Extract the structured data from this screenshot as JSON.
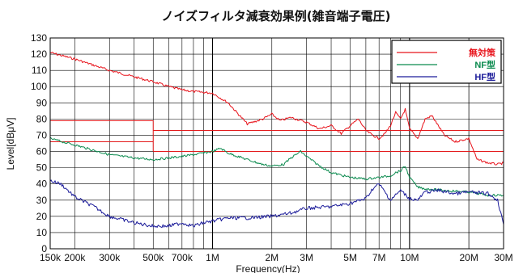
{
  "chart_data": {
    "type": "line",
    "title": "ノイズフィルタ減衰効果例(雑音端子電圧)",
    "xlabel": "Frequency(Hz)",
    "ylabel": "Level[dBμV]",
    "x_scale": "log",
    "xlim": [
      150000,
      30000000
    ],
    "ylim": [
      0,
      130
    ],
    "x_tick_values": [
      150000,
      200000,
      300000,
      500000,
      700000,
      1000000,
      2000000,
      3000000,
      5000000,
      7000000,
      10000000,
      20000000,
      30000000
    ],
    "x_tick_labels": [
      "150k",
      "200k",
      "300k",
      "500k",
      "700k",
      "1M",
      "2M",
      "3M",
      "5M",
      "7M",
      "10M",
      "20M",
      "30M"
    ],
    "y_ticks": [
      0,
      10,
      20,
      30,
      40,
      50,
      60,
      70,
      80,
      90,
      100,
      110,
      120,
      130
    ],
    "grid": true,
    "legend_position": "top-right",
    "limit_lines": [
      {
        "x": [
          150000,
          500000
        ],
        "y": 79,
        "color": "#e41a1c"
      },
      {
        "x": [
          150000,
          500000
        ],
        "y": 66,
        "color": "#e41a1c"
      },
      {
        "x": [
          500000,
          30000000
        ],
        "y": 73,
        "color": "#e41a1c"
      },
      {
        "x": [
          500000,
          30000000
        ],
        "y": 60,
        "color": "#e41a1c"
      }
    ],
    "series": [
      {
        "name": "無対策",
        "color": "#e8141c",
        "x": [
          150000,
          200000,
          300000,
          400000,
          500000,
          600000,
          700000,
          800000,
          1000000,
          1200000,
          1500000,
          1800000,
          2000000,
          2200000,
          2500000,
          3000000,
          3500000,
          4000000,
          4500000,
          5000000,
          5500000,
          6000000,
          6500000,
          7000000,
          7500000,
          8000000,
          8500000,
          9000000,
          9500000,
          10000000,
          11000000,
          12000000,
          13000000,
          15000000,
          17000000,
          20000000,
          22000000,
          25000000,
          28000000,
          30000000
        ],
        "y": [
          121,
          117,
          110,
          106,
          103,
          100,
          98,
          97,
          96,
          90,
          77,
          80,
          83,
          79,
          81,
          78,
          74,
          76,
          71,
          76,
          80,
          73,
          70,
          68,
          71,
          76,
          84,
          80,
          86,
          74,
          68,
          80,
          82,
          70,
          66,
          68,
          55,
          53,
          52,
          53
        ]
      },
      {
        "name": "NF型",
        "color": "#0a8a4e",
        "x": [
          150000,
          200000,
          300000,
          400000,
          500000,
          600000,
          700000,
          800000,
          1000000,
          1100000,
          1200000,
          1500000,
          1800000,
          2000000,
          2300000,
          2500000,
          2800000,
          3000000,
          3500000,
          4000000,
          5000000,
          6000000,
          7000000,
          8000000,
          8500000,
          9000000,
          9500000,
          10000000,
          11000000,
          12000000,
          15000000,
          20000000,
          25000000,
          30000000
        ],
        "y": [
          68,
          64,
          58,
          56,
          55,
          56,
          57,
          58,
          60,
          62,
          59,
          55,
          52,
          51,
          52,
          56,
          60,
          57,
          51,
          47,
          44,
          43,
          44,
          45,
          47,
          48,
          51,
          44,
          38,
          37,
          36,
          35,
          33,
          33
        ]
      },
      {
        "name": "HF型",
        "color": "#1c1c9a",
        "x": [
          150000,
          170000,
          200000,
          250000,
          300000,
          400000,
          500000,
          600000,
          700000,
          800000,
          900000,
          1000000,
          1200000,
          1500000,
          2000000,
          2500000,
          3000000,
          4000000,
          5000000,
          6000000,
          6500000,
          7000000,
          7500000,
          8000000,
          9000000,
          10000000,
          11000000,
          12000000,
          14000000,
          17000000,
          20000000,
          25000000,
          28000000,
          30000000
        ],
        "y": [
          42,
          40,
          32,
          26,
          20,
          16,
          14,
          14,
          16,
          14,
          16,
          17,
          19,
          19,
          20,
          22,
          25,
          26,
          28,
          31,
          37,
          40,
          35,
          30,
          36,
          31,
          30,
          35,
          36,
          34,
          35,
          34,
          30,
          15
        ]
      }
    ]
  }
}
